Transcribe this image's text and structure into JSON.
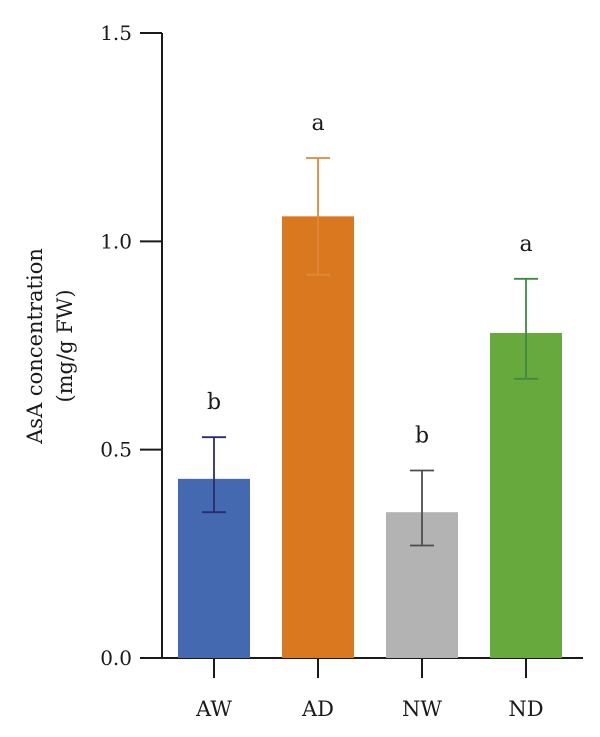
{
  "chart_data": {
    "type": "bar",
    "categories": [
      "AW",
      "AD",
      "NW",
      "ND"
    ],
    "values": [
      0.43,
      1.06,
      0.35,
      0.78
    ],
    "error_low": [
      0.35,
      0.92,
      0.27,
      0.67
    ],
    "error_high": [
      0.53,
      1.2,
      0.45,
      0.91
    ],
    "significance": [
      "b",
      "a",
      "b",
      "a"
    ],
    "colors": [
      "#4469b0",
      "#d9781e",
      "#b3b3b3",
      "#68a93e"
    ],
    "error_colors": [
      "#2a2a6e",
      "#e0883a",
      "#4d4d4d",
      "#3f8a3f"
    ],
    "ylabel_line1": "AsA concentration",
    "ylabel_line2": "(mg/g FW)",
    "xlabel": "",
    "title": "",
    "ylim": [
      0,
      1.5
    ],
    "yticks": [
      0.0,
      0.5,
      1.0,
      1.5
    ],
    "ytick_labels": [
      "0.0",
      "0.5",
      "1.0",
      "1.5"
    ],
    "grid": false,
    "legend": "none"
  }
}
